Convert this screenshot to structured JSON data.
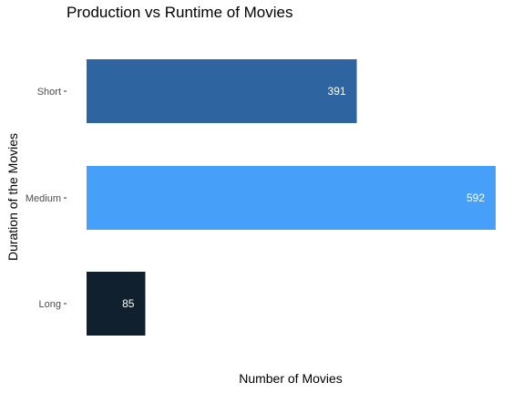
{
  "chart_data": {
    "type": "bar",
    "orientation": "horizontal",
    "title": "Production vs Runtime of Movies",
    "xlabel": "Number of Movies",
    "ylabel": "Duration of the Movies",
    "categories": [
      "Short",
      "Medium",
      "Long"
    ],
    "values": [
      391,
      592,
      85
    ],
    "value_labels": [
      "391",
      "592",
      "85"
    ],
    "colors": [
      "#2e64a0",
      "#469ff8",
      "#10202f"
    ],
    "xlim": [
      0,
      592
    ],
    "grid": false,
    "x_ticks_shown": false
  }
}
